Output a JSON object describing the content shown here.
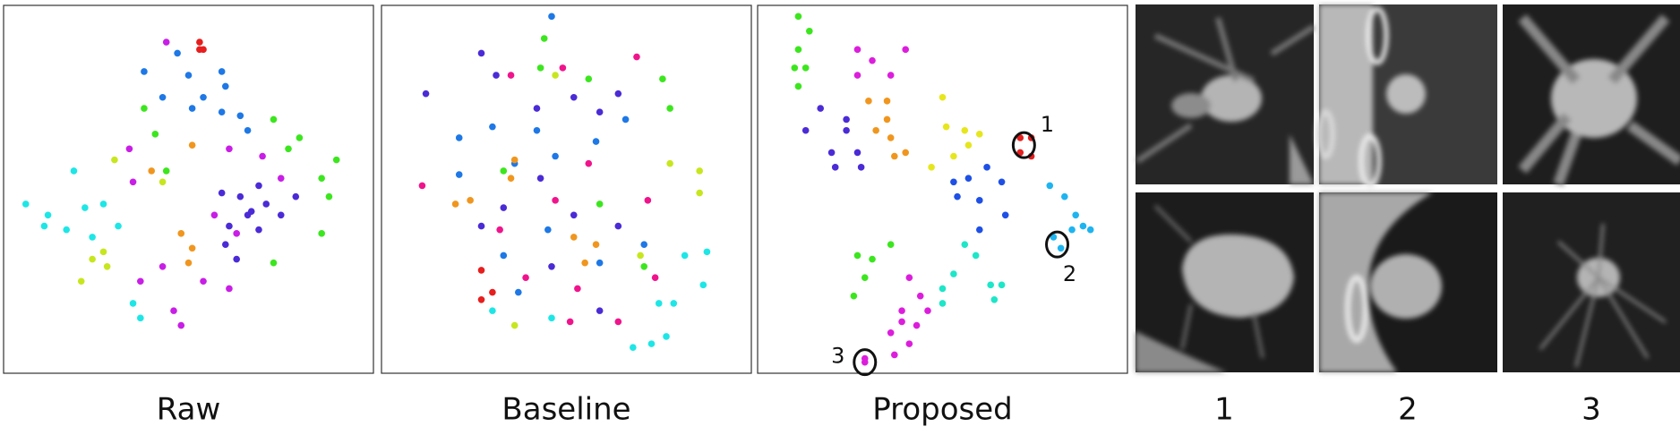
{
  "chart_data": [
    {
      "type": "scatter",
      "xlabel": "Raw",
      "xlim": [
        0,
        100
      ],
      "ylim": [
        0,
        100
      ],
      "series": [
        {
          "color": "#e61e1e",
          "x": [
            53,
            54,
            53
          ],
          "y": [
            90,
            88,
            88
          ]
        },
        {
          "color": "#1e78e6",
          "x": [
            38,
            47,
            50,
            59,
            54,
            59,
            64,
            43,
            51,
            60,
            66
          ],
          "y": [
            82,
            87,
            81,
            82,
            75,
            71,
            70,
            75,
            72,
            78,
            66
          ]
        },
        {
          "color": "#c81ee6",
          "x": [
            44,
            34,
            35,
            37,
            46,
            48,
            43,
            54,
            61,
            63,
            57,
            61,
            70,
            75
          ],
          "y": [
            90,
            61,
            52,
            25,
            17,
            13,
            29,
            25,
            23,
            38,
            43,
            61,
            59,
            53
          ]
        },
        {
          "color": "#4b2bd6",
          "x": [
            59,
            64,
            69,
            71,
            66,
            61,
            75,
            69,
            63,
            67,
            79,
            60
          ],
          "y": [
            49,
            48,
            51,
            46,
            43,
            40,
            43,
            39,
            31,
            44,
            48,
            35
          ]
        },
        {
          "color": "#3ce61e",
          "x": [
            38,
            41,
            73,
            80,
            86,
            90,
            88,
            86,
            73,
            44,
            77
          ],
          "y": [
            72,
            65,
            69,
            64,
            53,
            58,
            48,
            38,
            30,
            55,
            61
          ]
        },
        {
          "color": "#1ee6e6",
          "x": [
            19,
            6,
            12,
            17,
            22,
            27,
            11,
            31,
            35,
            37,
            24
          ],
          "y": [
            55,
            46,
            43,
            39,
            45,
            46,
            40,
            40,
            19,
            15,
            37
          ]
        },
        {
          "color": "#c8e61e",
          "x": [
            30,
            27,
            24,
            21,
            28,
            43
          ],
          "y": [
            58,
            33,
            31,
            25,
            29,
            52
          ]
        },
        {
          "color": "#f0961e",
          "x": [
            48,
            51,
            50,
            51,
            40
          ],
          "y": [
            38,
            34,
            30,
            62,
            55
          ]
        }
      ]
    },
    {
      "type": "scatter",
      "xlabel": "Baseline",
      "xlim": [
        0,
        100
      ],
      "ylim": [
        0,
        100
      ],
      "series": [
        {
          "color": "#1e78e6",
          "x": [
            46,
            21,
            30,
            36,
            42,
            47,
            58,
            66,
            33,
            45,
            59,
            71,
            37,
            21
          ],
          "y": [
            97,
            64,
            67,
            57,
            66,
            59,
            63,
            69,
            32,
            39,
            30,
            35,
            22,
            54
          ]
        },
        {
          "color": "#4b2bd6",
          "x": [
            27,
            31,
            42,
            52,
            59,
            64,
            12,
            43,
            52,
            64,
            46,
            27,
            33,
            59
          ],
          "y": [
            87,
            81,
            72,
            75,
            71,
            76,
            76,
            53,
            43,
            40,
            29,
            40,
            45,
            17
          ]
        },
        {
          "color": "#f0148c",
          "x": [
            35,
            49,
            69,
            56,
            47,
            32,
            39,
            53,
            64,
            72,
            11,
            51,
            74
          ],
          "y": [
            81,
            83,
            86,
            57,
            47,
            39,
            26,
            23,
            14,
            47,
            51,
            14,
            26
          ]
        },
        {
          "color": "#3ce61e",
          "x": [
            44,
            43,
            56,
            76,
            78,
            33,
            71,
            59
          ],
          "y": [
            91,
            83,
            80,
            80,
            72,
            55,
            29,
            46
          ]
        },
        {
          "color": "#1ee6e6",
          "x": [
            75,
            79,
            77,
            68,
            73,
            88,
            82,
            46,
            30,
            87
          ],
          "y": [
            19,
            19,
            10,
            7,
            8,
            33,
            32,
            15,
            17,
            24
          ]
        },
        {
          "color": "#f0961e",
          "x": [
            24,
            20,
            35,
            52,
            55,
            36,
            58
          ],
          "y": [
            47,
            46,
            53,
            37,
            30,
            58,
            35
          ]
        },
        {
          "color": "#e61e1e",
          "x": [
            27,
            30,
            27
          ],
          "y": [
            20,
            22,
            28
          ]
        },
        {
          "color": "#c8e61e",
          "x": [
            78,
            86,
            86,
            36,
            70,
            47
          ],
          "y": [
            57,
            55,
            49,
            13,
            32,
            81
          ]
        }
      ]
    },
    {
      "type": "scatter",
      "xlabel": "Proposed",
      "xlim": [
        0,
        100
      ],
      "ylim": [
        0,
        100
      ],
      "series": [
        {
          "color": "#3ce61e",
          "x": [
            11,
            14,
            11,
            10,
            13,
            11,
            27,
            29,
            26,
            36,
            31
          ],
          "y": [
            97,
            93,
            88,
            83,
            83,
            78,
            32,
            26,
            21,
            35,
            31
          ]
        },
        {
          "color": "#dc1edc",
          "x": [
            27,
            31,
            40,
            27,
            36,
            41,
            44,
            39,
            36,
            41,
            39,
            46,
            43,
            37,
            29,
            29
          ],
          "y": [
            88,
            85,
            88,
            81,
            81,
            26,
            21,
            17,
            11,
            8,
            14,
            17,
            13,
            5,
            3,
            4
          ]
        },
        {
          "color": "#4b2bd6",
          "x": [
            17,
            13,
            24,
            20,
            27,
            21,
            28,
            24
          ],
          "y": [
            72,
            66,
            66,
            60,
            60,
            56,
            56,
            69
          ]
        },
        {
          "color": "#f0961e",
          "x": [
            30,
            35,
            35,
            36,
            40,
            37,
            32
          ],
          "y": [
            74,
            74,
            69,
            64,
            60,
            59,
            66
          ]
        },
        {
          "color": "#e6e61e",
          "x": [
            50,
            51,
            56,
            60,
            57,
            47,
            53
          ],
          "y": [
            75,
            67,
            66,
            65,
            62,
            56,
            59
          ]
        },
        {
          "color": "#1e50e6",
          "x": [
            57,
            62,
            66,
            54,
            60,
            67,
            60,
            53
          ],
          "y": [
            53,
            56,
            52,
            48,
            47,
            43,
            39,
            52
          ]
        },
        {
          "color": "#e61e1e",
          "x": [
            71,
            74,
            71,
            74
          ],
          "y": [
            64,
            64,
            60,
            59
          ]
        },
        {
          "color": "#1eb4f0",
          "x": [
            79,
            83,
            86,
            88,
            85,
            80,
            82,
            90
          ],
          "y": [
            51,
            48,
            43,
            40,
            39,
            37,
            34,
            39
          ]
        },
        {
          "color": "#1ee6c8",
          "x": [
            56,
            59,
            53,
            50,
            63,
            66,
            64,
            50
          ],
          "y": [
            35,
            32,
            27,
            23,
            24,
            24,
            20,
            19
          ]
        }
      ],
      "annotations": [
        {
          "text": "1",
          "x": 72,
          "y": 62
        },
        {
          "text": "2",
          "x": 81,
          "y": 35
        },
        {
          "text": "3",
          "x": 29,
          "y": 3
        }
      ]
    }
  ],
  "images": {
    "labels": [
      "1",
      "2",
      "3"
    ]
  }
}
